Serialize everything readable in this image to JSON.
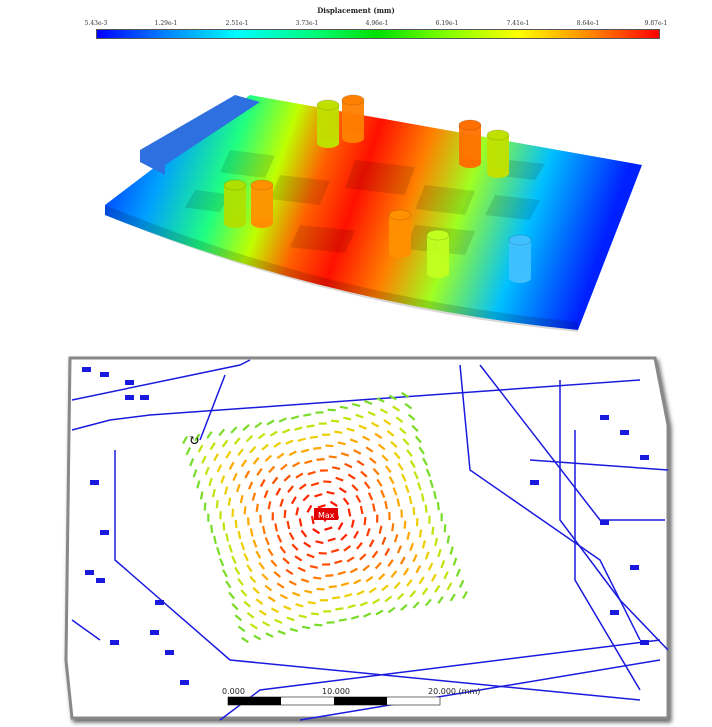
{
  "legend": {
    "title": "Displacement (mm)",
    "ticks": [
      "5.43e-3",
      "1.29e-1",
      "2.51e-1",
      "3.73e-1",
      "4.96e-1",
      "6.19e-1",
      "7.41e-1",
      "8.64e-1",
      "9.87e-1"
    ],
    "colors": [
      "#0000ff",
      "#00ffff",
      "#00e000",
      "#ffff00",
      "#ff0000"
    ]
  },
  "board_view": {
    "description_colors": {
      "low": "#0000ff",
      "high": "#ff0000"
    }
  },
  "pcb_view": {
    "max_label": "Max",
    "trace_color": "#1a1adf",
    "scale_bar": {
      "labels": [
        "0.000",
        "10.000",
        "20.000 (mm)"
      ]
    }
  }
}
